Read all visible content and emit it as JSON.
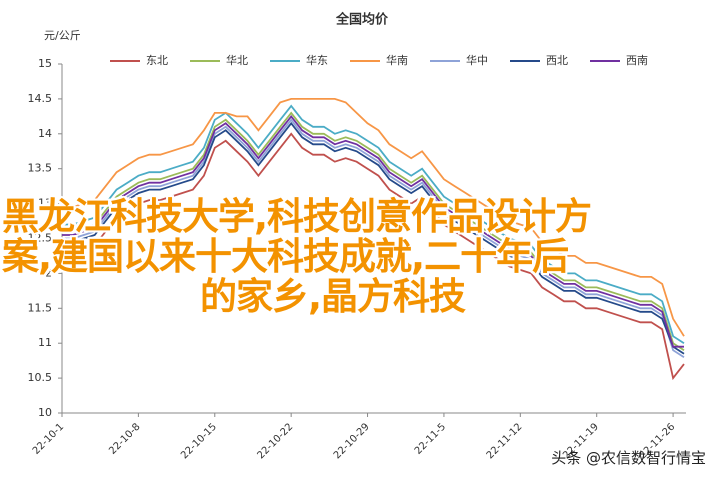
{
  "chart_data": {
    "type": "line",
    "title": "全国均价",
    "y_label": "元/公斤",
    "categories": [
      "22-10-1",
      null,
      null,
      null,
      null,
      null,
      null,
      "22-10-8",
      null,
      null,
      null,
      null,
      null,
      null,
      "22-10-15",
      null,
      null,
      null,
      null,
      null,
      null,
      "22-10-22",
      null,
      null,
      null,
      null,
      null,
      null,
      "22-10-29",
      null,
      null,
      null,
      null,
      null,
      null,
      "22-11-5",
      null,
      null,
      null,
      null,
      null,
      null,
      "22-11-12",
      null,
      null,
      null,
      null,
      null,
      null,
      "22-11-19",
      null,
      null,
      null,
      null,
      null,
      null,
      "22-11-26",
      null
    ],
    "series": [
      {
        "name": "东北",
        "color": "#c0504d",
        "values": [
          12.3,
          12.3,
          12.35,
          12.4,
          12.6,
          12.8,
          12.9,
          13.0,
          13.05,
          13.05,
          13.1,
          13.15,
          13.2,
          13.4,
          13.8,
          13.9,
          13.75,
          13.6,
          13.4,
          13.6,
          13.8,
          14.0,
          13.8,
          13.7,
          13.7,
          13.6,
          13.65,
          13.6,
          13.5,
          13.4,
          13.2,
          13.1,
          13.0,
          13.1,
          12.9,
          12.7,
          12.6,
          12.5,
          12.4,
          12.3,
          12.2,
          12.1,
          12.05,
          12.0,
          11.8,
          11.7,
          11.6,
          11.6,
          11.5,
          11.5,
          11.45,
          11.4,
          11.35,
          11.3,
          11.3,
          11.2,
          10.5,
          10.7
        ]
      },
      {
        "name": "华北",
        "color": "#9bbb59",
        "values": [
          12.6,
          12.6,
          12.65,
          12.7,
          12.9,
          13.1,
          13.2,
          13.3,
          13.35,
          13.35,
          13.4,
          13.45,
          13.5,
          13.7,
          14.1,
          14.2,
          14.05,
          13.9,
          13.7,
          13.9,
          14.1,
          14.3,
          14.1,
          14.0,
          14.0,
          13.9,
          13.95,
          13.9,
          13.8,
          13.7,
          13.5,
          13.4,
          13.3,
          13.4,
          13.2,
          13.0,
          12.9,
          12.8,
          12.7,
          12.6,
          12.5,
          12.4,
          12.35,
          12.3,
          12.1,
          12.0,
          11.9,
          11.9,
          11.8,
          11.8,
          11.75,
          11.7,
          11.65,
          11.6,
          11.6,
          11.5,
          11.0,
          10.9
        ]
      },
      {
        "name": "华东",
        "color": "#4bacc6",
        "values": [
          12.7,
          12.7,
          12.75,
          12.8,
          13.0,
          13.2,
          13.3,
          13.4,
          13.45,
          13.45,
          13.5,
          13.55,
          13.6,
          13.8,
          14.2,
          14.3,
          14.15,
          14.0,
          13.8,
          14.0,
          14.2,
          14.4,
          14.2,
          14.1,
          14.1,
          14.0,
          14.05,
          14.0,
          13.9,
          13.8,
          13.6,
          13.5,
          13.4,
          13.5,
          13.3,
          13.1,
          13.0,
          12.9,
          12.8,
          12.7,
          12.6,
          12.5,
          12.45,
          12.4,
          12.2,
          12.1,
          12.0,
          12.0,
          11.9,
          11.9,
          11.85,
          11.8,
          11.75,
          11.7,
          11.7,
          11.6,
          11.1,
          11.0
        ]
      },
      {
        "name": "华南",
        "color": "#f79646",
        "values": [
          12.95,
          12.95,
          13.0,
          13.05,
          13.25,
          13.45,
          13.55,
          13.65,
          13.7,
          13.7,
          13.75,
          13.8,
          13.85,
          14.05,
          14.3,
          14.3,
          14.25,
          14.25,
          14.05,
          14.25,
          14.45,
          14.5,
          14.5,
          14.5,
          14.5,
          14.5,
          14.45,
          14.3,
          14.15,
          14.05,
          13.85,
          13.75,
          13.65,
          13.75,
          13.55,
          13.35,
          13.25,
          13.15,
          13.05,
          12.95,
          12.85,
          12.75,
          12.7,
          12.65,
          12.45,
          12.35,
          12.25,
          12.25,
          12.15,
          12.15,
          12.1,
          12.05,
          12.0,
          11.95,
          11.95,
          11.85,
          11.35,
          11.1
        ]
      },
      {
        "name": "华中",
        "color": "#8ea3d8",
        "values": [
          12.5,
          12.5,
          12.55,
          12.6,
          12.8,
          13.0,
          13.1,
          13.2,
          13.25,
          13.25,
          13.3,
          13.35,
          13.4,
          13.6,
          14.0,
          14.1,
          13.95,
          13.8,
          13.6,
          13.8,
          14.0,
          14.2,
          14.0,
          13.9,
          13.9,
          13.8,
          13.85,
          13.8,
          13.7,
          13.6,
          13.4,
          13.3,
          13.2,
          13.3,
          13.1,
          12.9,
          12.8,
          12.7,
          12.6,
          12.5,
          12.4,
          12.3,
          12.25,
          12.2,
          12.0,
          11.9,
          11.8,
          11.8,
          11.7,
          11.7,
          11.65,
          11.6,
          11.55,
          11.5,
          11.5,
          11.4,
          10.9,
          10.8
        ]
      },
      {
        "name": "西北",
        "color": "#254a8a",
        "values": [
          12.45,
          12.45,
          12.5,
          12.55,
          12.75,
          12.95,
          13.05,
          13.15,
          13.2,
          13.2,
          13.25,
          13.3,
          13.35,
          13.55,
          13.95,
          14.05,
          13.9,
          13.75,
          13.55,
          13.75,
          13.95,
          14.15,
          13.95,
          13.85,
          13.85,
          13.75,
          13.8,
          13.75,
          13.65,
          13.55,
          13.35,
          13.25,
          13.15,
          13.25,
          13.05,
          12.85,
          12.75,
          12.65,
          12.55,
          12.45,
          12.35,
          12.25,
          12.2,
          12.15,
          11.95,
          11.85,
          11.75,
          11.75,
          11.65,
          11.65,
          11.6,
          11.55,
          11.5,
          11.45,
          11.45,
          11.35,
          10.95,
          10.85
        ]
      },
      {
        "name": "西南",
        "color": "#7030a0",
        "values": [
          12.55,
          12.55,
          12.6,
          12.65,
          12.85,
          13.05,
          13.15,
          13.25,
          13.3,
          13.3,
          13.35,
          13.4,
          13.45,
          13.65,
          14.05,
          14.15,
          14.0,
          13.85,
          13.65,
          13.85,
          14.05,
          14.25,
          14.05,
          13.95,
          13.95,
          13.85,
          13.9,
          13.85,
          13.75,
          13.65,
          13.45,
          13.35,
          13.25,
          13.35,
          13.15,
          12.95,
          12.85,
          12.75,
          12.65,
          12.55,
          12.45,
          12.35,
          12.3,
          12.25,
          12.05,
          11.95,
          11.85,
          11.85,
          11.75,
          11.75,
          11.7,
          11.65,
          11.6,
          11.55,
          11.55,
          11.45,
          10.95,
          10.95
        ]
      }
    ],
    "ylim": [
      10,
      15
    ],
    "yticks": [
      10,
      10.5,
      11,
      11.5,
      12,
      12.5,
      13,
      13.5,
      14,
      14.5,
      15
    ],
    "grid": false,
    "legend": "top"
  },
  "overlay": [
    "黑龙江科技大学,科技创意作品设计方",
    "案,建国以来十大科技成就,二十年后",
    "的家乡,晶方科技"
  ],
  "source": "头条 @农信数智行情宝"
}
